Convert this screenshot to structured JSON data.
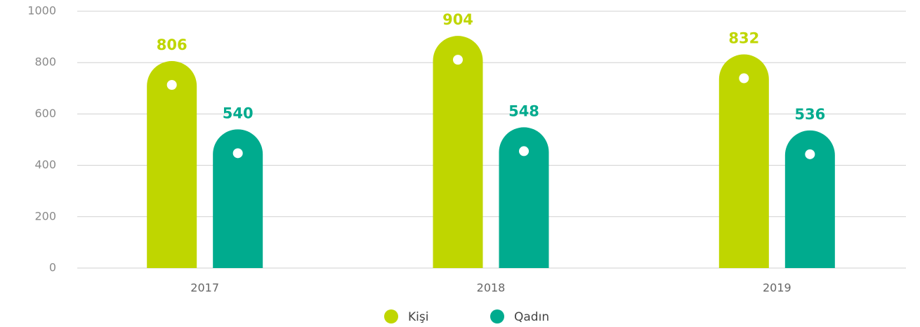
{
  "chart_data": {
    "type": "bar",
    "categories": [
      "2017",
      "2018",
      "2019"
    ],
    "series": [
      {
        "name": "Kişi",
        "color": "#bfd600",
        "values": [
          806,
          904,
          832
        ]
      },
      {
        "name": "Qadın",
        "color": "#00ab8e",
        "values": [
          540,
          548,
          536
        ]
      }
    ],
    "ylim": [
      0,
      1000
    ],
    "yticks": [
      0,
      200,
      400,
      600,
      800,
      1000
    ],
    "grid": true,
    "legend": "bottom"
  }
}
